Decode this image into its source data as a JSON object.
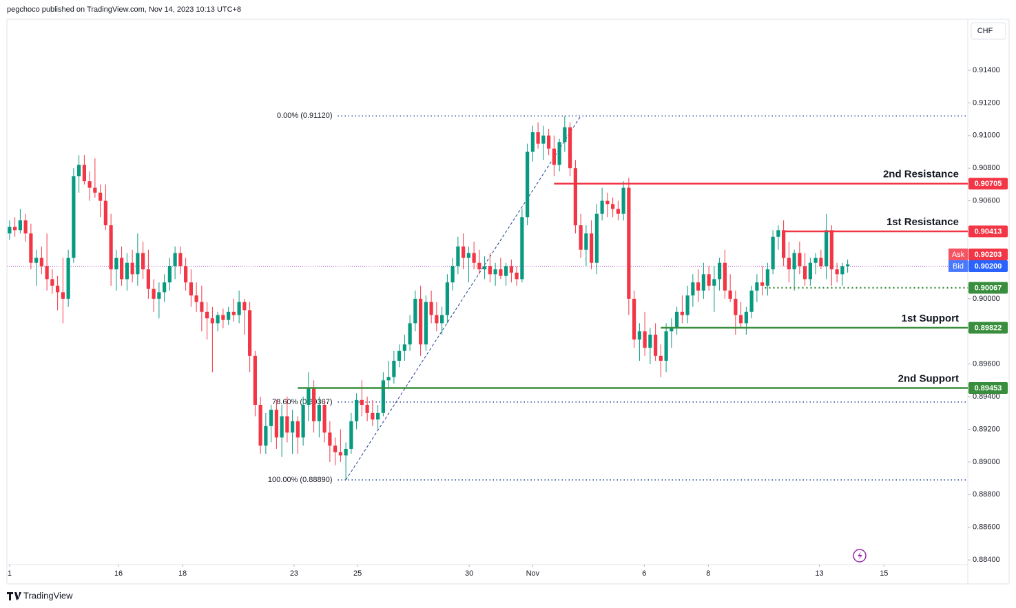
{
  "header": "pegchoco published on TradingView.com, Nov 14, 2023 10:13 UTC+8",
  "footer": "TradingView",
  "chart_data": {
    "type": "candlestick",
    "currency": "CHF",
    "up_color": "#089981",
    "down_color": "#f23645",
    "grid": false,
    "ylim": [
      0.88253,
      0.91712
    ],
    "yticks": [
      {
        "value": 0.884,
        "label": "0.88400"
      },
      {
        "value": 0.886,
        "label": "0.88600"
      },
      {
        "value": 0.888,
        "label": "0.88800"
      },
      {
        "value": 0.89,
        "label": "0.89000"
      },
      {
        "value": 0.892,
        "label": "0.89200"
      },
      {
        "value": 0.894,
        "label": "0.89400"
      },
      {
        "value": 0.896,
        "label": "0.89600"
      },
      {
        "value": 0.898,
        "label": "0.89800"
      },
      {
        "value": 0.9,
        "label": "0.90000"
      },
      {
        "value": 0.902,
        "label": "0.90200"
      },
      {
        "value": 0.904,
        "label": "0.90400"
      },
      {
        "value": 0.906,
        "label": "0.90600"
      },
      {
        "value": 0.908,
        "label": "0.90800"
      },
      {
        "value": 0.91,
        "label": "0.91000"
      },
      {
        "value": 0.912,
        "label": "0.91200"
      },
      {
        "value": 0.914,
        "label": "0.91400"
      }
    ],
    "xlim": [
      -0.5,
      179.5
    ],
    "xticks": [
      {
        "value": 0,
        "label": "1"
      },
      {
        "value": 20.4,
        "label": "16"
      },
      {
        "value": 32.4,
        "label": "18"
      },
      {
        "value": 53.3,
        "label": "23"
      },
      {
        "value": 65.2,
        "label": "25"
      },
      {
        "value": 86.1,
        "label": "30"
      },
      {
        "value": 98,
        "label": "Nov"
      },
      {
        "value": 118.9,
        "label": "6"
      },
      {
        "value": 130.9,
        "label": "8"
      },
      {
        "value": 151.7,
        "label": "13"
      },
      {
        "value": 163.8,
        "label": "15"
      }
    ],
    "candles": [
      [
        0.904,
        0.9048,
        0.9036,
        0.9044
      ],
      [
        0.9044,
        0.905,
        0.9038,
        0.9042
      ],
      [
        0.9042,
        0.9055,
        0.904,
        0.9048
      ],
      [
        0.9048,
        0.9052,
        0.9035,
        0.904
      ],
      [
        0.904,
        0.9046,
        0.9018,
        0.9022
      ],
      [
        0.9022,
        0.903,
        0.9008,
        0.9025
      ],
      [
        0.9025,
        0.9032,
        0.9015,
        0.902
      ],
      [
        0.902,
        0.904,
        0.9005,
        0.9012
      ],
      [
        0.9012,
        0.9018,
        0.9003,
        0.9008
      ],
      [
        0.9008,
        0.9014,
        0.8993,
        0.9004
      ],
      [
        0.9004,
        0.9025,
        0.8985,
        0.9
      ],
      [
        0.9,
        0.903,
        0.8995,
        0.9025
      ],
      [
        0.9025,
        0.908,
        0.9022,
        0.9075
      ],
      [
        0.9075,
        0.9088,
        0.9065,
        0.9082
      ],
      [
        0.9082,
        0.9088,
        0.907,
        0.9072
      ],
      [
        0.9072,
        0.9078,
        0.906,
        0.9068
      ],
      [
        0.9068,
        0.9086,
        0.9062,
        0.9065
      ],
      [
        0.9065,
        0.907,
        0.905,
        0.906
      ],
      [
        0.906,
        0.907,
        0.9042,
        0.9045
      ],
      [
        0.9045,
        0.9052,
        0.9008,
        0.9018
      ],
      [
        0.9018,
        0.903,
        0.9005,
        0.9025
      ],
      [
        0.9025,
        0.9032,
        0.9008,
        0.9012
      ],
      [
        0.9012,
        0.9028,
        0.9005,
        0.9022
      ],
      [
        0.9022,
        0.903,
        0.901,
        0.9015
      ],
      [
        0.9015,
        0.904,
        0.9008,
        0.9028
      ],
      [
        0.9028,
        0.9035,
        0.9012,
        0.9018
      ],
      [
        0.9018,
        0.903,
        0.9,
        0.9006
      ],
      [
        0.9006,
        0.9012,
        0.8992,
        0.9
      ],
      [
        0.9,
        0.901,
        0.8988,
        0.9004
      ],
      [
        0.9004,
        0.9015,
        0.8998,
        0.901
      ],
      [
        0.901,
        0.9025,
        0.9005,
        0.902
      ],
      [
        0.902,
        0.9032,
        0.9012,
        0.9028
      ],
      [
        0.9028,
        0.9032,
        0.9015,
        0.902
      ],
      [
        0.902,
        0.9025,
        0.9005,
        0.901
      ],
      [
        0.901,
        0.9018,
        0.8995,
        0.9002
      ],
      [
        0.9002,
        0.901,
        0.8992,
        0.8998
      ],
      [
        0.8998,
        0.9008,
        0.898,
        0.8992
      ],
      [
        0.8992,
        0.8998,
        0.8975,
        0.8988
      ],
      [
        0.8988,
        0.8995,
        0.8955,
        0.8985
      ],
      [
        0.8985,
        0.8992,
        0.898,
        0.899
      ],
      [
        0.899,
        0.8994,
        0.8982,
        0.8987
      ],
      [
        0.8987,
        0.8995,
        0.8984,
        0.8992
      ],
      [
        0.8992,
        0.9,
        0.8986,
        0.899
      ],
      [
        0.899,
        0.9005,
        0.8985,
        0.8998
      ],
      [
        0.8998,
        0.9,
        0.8978,
        0.8993
      ],
      [
        0.8993,
        0.8998,
        0.8955,
        0.8965
      ],
      [
        0.8965,
        0.8968,
        0.8928,
        0.8935
      ],
      [
        0.8935,
        0.894,
        0.8905,
        0.891
      ],
      [
        0.891,
        0.893,
        0.8905,
        0.8922
      ],
      [
        0.8922,
        0.8935,
        0.8912,
        0.8932
      ],
      [
        0.8932,
        0.8938,
        0.8908,
        0.8915
      ],
      [
        0.8915,
        0.8935,
        0.8903,
        0.8928
      ],
      [
        0.8928,
        0.894,
        0.8912,
        0.8918
      ],
      [
        0.8918,
        0.8932,
        0.8905,
        0.8925
      ],
      [
        0.8925,
        0.8928,
        0.8905,
        0.8915
      ],
      [
        0.8915,
        0.894,
        0.891,
        0.8935
      ],
      [
        0.8935,
        0.8955,
        0.8925,
        0.8945
      ],
      [
        0.8945,
        0.895,
        0.8918,
        0.8925
      ],
      [
        0.8925,
        0.894,
        0.8915,
        0.8935
      ],
      [
        0.8935,
        0.8938,
        0.8912,
        0.8918
      ],
      [
        0.8918,
        0.8925,
        0.89,
        0.891
      ],
      [
        0.891,
        0.8915,
        0.8898,
        0.8906
      ],
      [
        0.8906,
        0.892,
        0.89,
        0.8904
      ],
      [
        0.8904,
        0.8912,
        0.8889,
        0.8908
      ],
      [
        0.8908,
        0.893,
        0.8905,
        0.8925
      ],
      [
        0.8925,
        0.8942,
        0.892,
        0.8938
      ],
      [
        0.8938,
        0.895,
        0.8928,
        0.8935
      ],
      [
        0.8935,
        0.894,
        0.8925,
        0.893
      ],
      [
        0.893,
        0.8938,
        0.8922,
        0.8926
      ],
      [
        0.8926,
        0.8935,
        0.892,
        0.893
      ],
      [
        0.893,
        0.8955,
        0.8928,
        0.895
      ],
      [
        0.895,
        0.8962,
        0.8945,
        0.8952
      ],
      [
        0.8952,
        0.8968,
        0.8948,
        0.8962
      ],
      [
        0.8962,
        0.8972,
        0.8958,
        0.8968
      ],
      [
        0.8968,
        0.8978,
        0.8962,
        0.8972
      ],
      [
        0.8972,
        0.899,
        0.8968,
        0.8985
      ],
      [
        0.8985,
        0.9005,
        0.898,
        0.9
      ],
      [
        0.9,
        0.9008,
        0.8965,
        0.8972
      ],
      [
        0.8972,
        0.9002,
        0.8968,
        0.8998
      ],
      [
        0.8998,
        0.9005,
        0.8985,
        0.899
      ],
      [
        0.899,
        0.8998,
        0.898,
        0.8985
      ],
      [
        0.8985,
        0.8995,
        0.8978,
        0.899
      ],
      [
        0.899,
        0.9015,
        0.8985,
        0.901
      ],
      [
        0.901,
        0.9025,
        0.9005,
        0.902
      ],
      [
        0.902,
        0.9038,
        0.9015,
        0.9032
      ],
      [
        0.9032,
        0.904,
        0.9018,
        0.9025
      ],
      [
        0.9025,
        0.9032,
        0.901,
        0.9028
      ],
      [
        0.9028,
        0.9035,
        0.9018,
        0.9022
      ],
      [
        0.9022,
        0.903,
        0.9015,
        0.9018
      ],
      [
        0.9018,
        0.9026,
        0.9012,
        0.902
      ],
      [
        0.902,
        0.9028,
        0.901,
        0.9015
      ],
      [
        0.9015,
        0.9022,
        0.9008,
        0.9018
      ],
      [
        0.9018,
        0.9025,
        0.9012,
        0.9014
      ],
      [
        0.9014,
        0.9022,
        0.9008,
        0.902
      ],
      [
        0.902,
        0.9024,
        0.901,
        0.9016
      ],
      [
        0.9016,
        0.902,
        0.9008,
        0.9012
      ],
      [
        0.9012,
        0.9055,
        0.901,
        0.905
      ],
      [
        0.905,
        0.9095,
        0.9045,
        0.909
      ],
      [
        0.909,
        0.9106,
        0.9084,
        0.9102
      ],
      [
        0.9102,
        0.9108,
        0.9092,
        0.9095
      ],
      [
        0.9095,
        0.9106,
        0.9085,
        0.91
      ],
      [
        0.91,
        0.9104,
        0.9088,
        0.9092
      ],
      [
        0.9092,
        0.91,
        0.9075,
        0.9082
      ],
      [
        0.9082,
        0.9098,
        0.9078,
        0.9096
      ],
      [
        0.9096,
        0.9112,
        0.909,
        0.9105
      ],
      [
        0.9105,
        0.9108,
        0.9075,
        0.908
      ],
      [
        0.908,
        0.9085,
        0.904,
        0.9045
      ],
      [
        0.9045,
        0.9052,
        0.9025,
        0.903
      ],
      [
        0.903,
        0.9045,
        0.902,
        0.904
      ],
      [
        0.904,
        0.9048,
        0.9018,
        0.9022
      ],
      [
        0.9022,
        0.9058,
        0.9015,
        0.9052
      ],
      [
        0.9052,
        0.9068,
        0.9048,
        0.906
      ],
      [
        0.906,
        0.9065,
        0.905,
        0.9058
      ],
      [
        0.9058,
        0.9062,
        0.905,
        0.9055
      ],
      [
        0.9055,
        0.906,
        0.9048,
        0.9052
      ],
      [
        0.9052,
        0.9072,
        0.9048,
        0.9068
      ],
      [
        0.9068,
        0.9074,
        0.899,
        0.9
      ],
      [
        0.9,
        0.9005,
        0.897,
        0.8975
      ],
      [
        0.8975,
        0.8985,
        0.8962,
        0.898
      ],
      [
        0.898,
        0.8992,
        0.8965,
        0.897
      ],
      [
        0.897,
        0.8982,
        0.896,
        0.8978
      ],
      [
        0.8978,
        0.8985,
        0.8962,
        0.8965
      ],
      [
        0.8965,
        0.8972,
        0.8952,
        0.8962
      ],
      [
        0.8962,
        0.8985,
        0.8955,
        0.898
      ],
      [
        0.898,
        0.8988,
        0.897,
        0.8982
      ],
      [
        0.8982,
        0.8995,
        0.8978,
        0.8992
      ],
      [
        0.8992,
        0.9002,
        0.8985,
        0.899
      ],
      [
        0.899,
        0.9008,
        0.8985,
        0.9002
      ],
      [
        0.9002,
        0.9015,
        0.8995,
        0.901
      ],
      [
        0.901,
        0.9018,
        0.8998,
        0.9005
      ],
      [
        0.9005,
        0.9022,
        0.9,
        0.9015
      ],
      [
        0.9015,
        0.902,
        0.9005,
        0.9008
      ],
      [
        0.9008,
        0.902,
        0.8992,
        0.9012
      ],
      [
        0.9012,
        0.9025,
        0.9005,
        0.9022
      ],
      [
        0.9022,
        0.903,
        0.9,
        0.9005
      ],
      [
        0.9005,
        0.9015,
        0.8998,
        0.9
      ],
      [
        0.9,
        0.9005,
        0.8978,
        0.899
      ],
      [
        0.899,
        0.8998,
        0.8982,
        0.8985
      ],
      [
        0.8985,
        0.8995,
        0.8978,
        0.8992
      ],
      [
        0.8992,
        0.9008,
        0.8988,
        0.9005
      ],
      [
        0.9005,
        0.9015,
        0.8998,
        0.901
      ],
      [
        0.901,
        0.902,
        0.9002,
        0.9008
      ],
      [
        0.9008,
        0.9022,
        0.9002,
        0.9018
      ],
      [
        0.9018,
        0.9042,
        0.9015,
        0.9038
      ],
      [
        0.9038,
        0.9045,
        0.903,
        0.9042
      ],
      [
        0.9042,
        0.9048,
        0.902,
        0.9025
      ],
      [
        0.9025,
        0.9035,
        0.901,
        0.9018
      ],
      [
        0.9018,
        0.903,
        0.9005,
        0.9028
      ],
      [
        0.9028,
        0.9035,
        0.9015,
        0.902
      ],
      [
        0.902,
        0.9028,
        0.9008,
        0.9012
      ],
      [
        0.9012,
        0.9025,
        0.9008,
        0.9022
      ],
      [
        0.9022,
        0.9028,
        0.9015,
        0.9025
      ],
      [
        0.9025,
        0.903,
        0.9018,
        0.902
      ],
      [
        0.902,
        0.9052,
        0.9012,
        0.9042
      ],
      [
        0.9042,
        0.9045,
        0.9008,
        0.9018
      ],
      [
        0.9018,
        0.9022,
        0.901,
        0.9015
      ],
      [
        0.9015,
        0.9022,
        0.9008,
        0.902
      ],
      [
        0.902,
        0.9024,
        0.9016,
        0.9021
      ]
    ],
    "levels": [
      {
        "name": "2nd Resistance",
        "value": 0.90705,
        "value_label": "0.90705",
        "color": "#f23645",
        "style": "solid"
      },
      {
        "name": "1st Resistance",
        "value": 0.90413,
        "value_label": "0.90413",
        "color": "#f23645",
        "style": "solid"
      },
      {
        "value": 0.90067,
        "value_label": "0.90067",
        "color": "#388e3c",
        "style": "dotted"
      },
      {
        "name": "1st Support",
        "value": 0.89822,
        "value_label": "0.89822",
        "color": "#388e3c",
        "style": "solid"
      },
      {
        "name": "2nd Support",
        "value": 0.89453,
        "value_label": "0.89453",
        "color": "#388e3c",
        "style": "solid"
      }
    ],
    "fib": [
      {
        "label": "0.00% (0.91120)",
        "value": 0.9112
      },
      {
        "label": "78.60% (0.89367)",
        "value": 0.89367
      },
      {
        "label": "100.00% (0.88890)",
        "value": 0.8889
      }
    ],
    "fib_color": "#1e3f8f",
    "quotes": [
      {
        "name": "Ask",
        "value": 0.90203,
        "value_label": "0.90203",
        "color": "#f23645"
      },
      {
        "name": "Bid",
        "value": 0.902,
        "value_label": "0.90200",
        "color": "#2962ff"
      }
    ]
  }
}
